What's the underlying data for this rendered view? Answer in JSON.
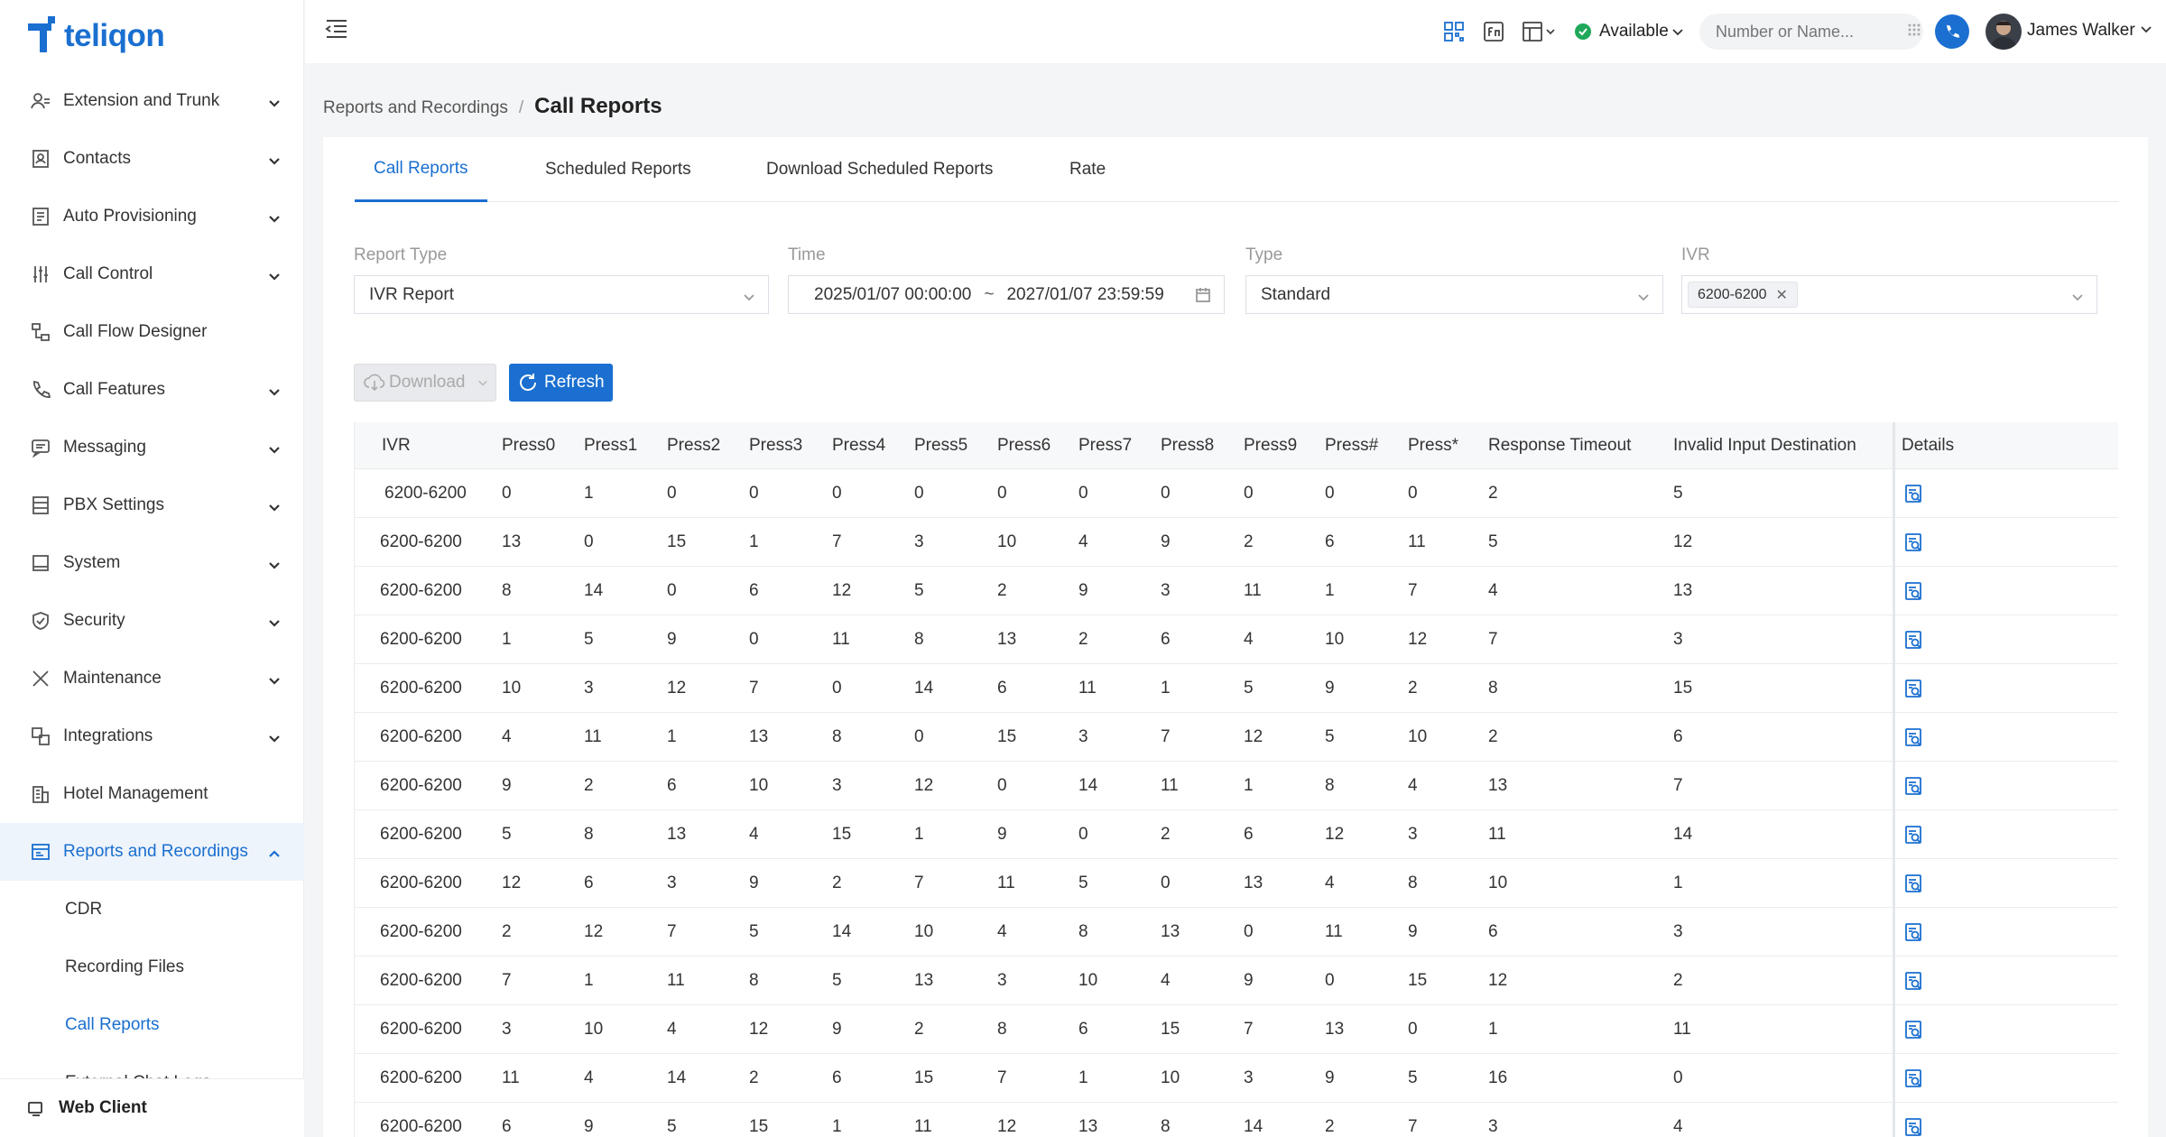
{
  "app": {
    "logo_text": "teliqon"
  },
  "sidebar": {
    "items": [
      {
        "label": "Extension and Trunk",
        "icon": "user-group-icon",
        "expandable": true
      },
      {
        "label": "Contacts",
        "icon": "contacts-book-icon",
        "expandable": true
      },
      {
        "label": "Auto Provisioning",
        "icon": "provisioning-icon",
        "expandable": true
      },
      {
        "label": "Call Control",
        "icon": "sliders-icon",
        "expandable": true
      },
      {
        "label": "Call Flow Designer",
        "icon": "flow-icon",
        "expandable": false
      },
      {
        "label": "Call Features",
        "icon": "phone-icon",
        "expandable": true
      },
      {
        "label": "Messaging",
        "icon": "message-icon",
        "expandable": true
      },
      {
        "label": "PBX Settings",
        "icon": "server-icon",
        "expandable": true
      },
      {
        "label": "System",
        "icon": "monitor-icon",
        "expandable": true
      },
      {
        "label": "Security",
        "icon": "shield-icon",
        "expandable": true
      },
      {
        "label": "Maintenance",
        "icon": "tools-icon",
        "expandable": true
      },
      {
        "label": "Integrations",
        "icon": "integration-icon",
        "expandable": true
      },
      {
        "label": "Hotel Management",
        "icon": "building-icon",
        "expandable": false
      },
      {
        "label": "Reports and Recordings",
        "icon": "report-icon",
        "expandable": true,
        "expanded": true,
        "active": true
      }
    ],
    "subitems": [
      {
        "label": "CDR"
      },
      {
        "label": "Recording Files"
      },
      {
        "label": "Call Reports",
        "active": true
      },
      {
        "label": "External Chat Logs"
      }
    ],
    "web_client": "Web Client"
  },
  "topbar": {
    "status": "Available",
    "dial_placeholder": "Number or Name...",
    "user_name": "James Walker"
  },
  "breadcrumb": {
    "parent": "Reports and Recordings",
    "separator": "/",
    "current": "Call Reports"
  },
  "tabs": [
    {
      "label": "Call Reports",
      "active": true
    },
    {
      "label": "Scheduled Reports"
    },
    {
      "label": "Download Scheduled Reports"
    },
    {
      "label": "Rate"
    }
  ],
  "filters": {
    "report_type": {
      "label": "Report Type",
      "value": "IVR Report"
    },
    "time": {
      "label": "Time",
      "start": "2025/01/07 00:00:00",
      "separator": "~",
      "end": "2027/01/07 23:59:59"
    },
    "type": {
      "label": "Type",
      "value": "Standard"
    },
    "ivr": {
      "label": "IVR",
      "tag": "6200-6200"
    }
  },
  "buttons": {
    "download": "Download",
    "refresh": "Refresh"
  },
  "table": {
    "columns": [
      "IVR",
      "Press0",
      "Press1",
      "Press2",
      "Press3",
      "Press4",
      "Press5",
      "Press6",
      "Press7",
      "Press8",
      "Press9",
      "Press#",
      "Press*",
      "Response Timeout",
      "Invalid Input Destination",
      "Details"
    ],
    "rows": [
      [
        "6200-6200",
        "0",
        "1",
        "0",
        "0",
        "0",
        "0",
        "0",
        "0",
        "0",
        "0",
        "0",
        "0",
        "2",
        "5"
      ],
      [
        "6200-6200",
        "13",
        "0",
        "15",
        "1",
        "7",
        "3",
        "10",
        "4",
        "9",
        "2",
        "6",
        "11",
        "5",
        "12"
      ],
      [
        "6200-6200",
        "8",
        "14",
        "0",
        "6",
        "12",
        "5",
        "2",
        "9",
        "3",
        "11",
        "1",
        "7",
        "4",
        "13"
      ],
      [
        "6200-6200",
        "1",
        "5",
        "9",
        "0",
        "11",
        "8",
        "13",
        "2",
        "6",
        "4",
        "10",
        "12",
        "7",
        "3"
      ],
      [
        "6200-6200",
        "10",
        "3",
        "12",
        "7",
        "0",
        "14",
        "6",
        "11",
        "1",
        "5",
        "9",
        "2",
        "8",
        "15"
      ],
      [
        "6200-6200",
        "4",
        "11",
        "1",
        "13",
        "8",
        "0",
        "15",
        "3",
        "7",
        "12",
        "5",
        "10",
        "2",
        "6"
      ],
      [
        "6200-6200",
        "9",
        "2",
        "6",
        "10",
        "3",
        "12",
        "0",
        "14",
        "11",
        "1",
        "8",
        "4",
        "13",
        "7"
      ],
      [
        "6200-6200",
        "5",
        "8",
        "13",
        "4",
        "15",
        "1",
        "9",
        "0",
        "2",
        "6",
        "12",
        "3",
        "11",
        "14"
      ],
      [
        "6200-6200",
        "12",
        "6",
        "3",
        "9",
        "2",
        "7",
        "11",
        "5",
        "0",
        "13",
        "4",
        "8",
        "10",
        "1"
      ],
      [
        "6200-6200",
        "2",
        "12",
        "7",
        "5",
        "14",
        "10",
        "4",
        "8",
        "13",
        "0",
        "11",
        "9",
        "6",
        "3"
      ],
      [
        "6200-6200",
        "7",
        "1",
        "11",
        "8",
        "5",
        "13",
        "3",
        "10",
        "4",
        "9",
        "0",
        "15",
        "12",
        "2"
      ],
      [
        "6200-6200",
        "3",
        "10",
        "4",
        "12",
        "9",
        "2",
        "8",
        "6",
        "15",
        "7",
        "13",
        "0",
        "1",
        "11"
      ],
      [
        "6200-6200",
        "11",
        "4",
        "14",
        "2",
        "6",
        "15",
        "7",
        "1",
        "10",
        "3",
        "9",
        "5",
        "16",
        "0"
      ],
      [
        "6200-6200",
        "6",
        "9",
        "5",
        "15",
        "1",
        "11",
        "12",
        "13",
        "8",
        "14",
        "2",
        "7",
        "3",
        "4"
      ]
    ]
  },
  "colors": {
    "primary": "#1a6fd0",
    "status_green": "#1fa85a"
  }
}
